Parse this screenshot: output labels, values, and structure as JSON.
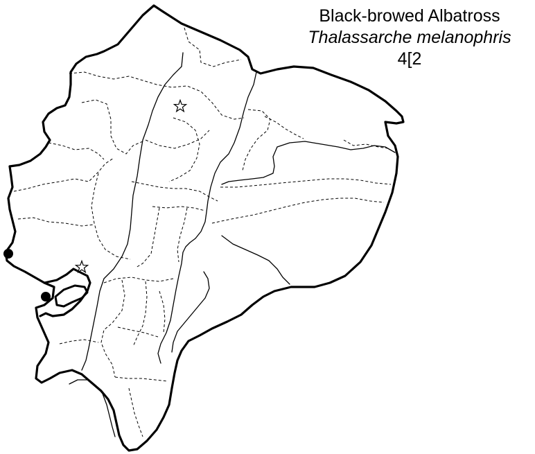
{
  "map": {
    "title": "Black-browed Albatross",
    "scientific_name": "Thalassarche melanophris",
    "code": "4[2",
    "record_types": [
      "dot",
      "star"
    ],
    "records": [
      {
        "type": "dot"
      },
      {
        "type": "dot"
      },
      {
        "type": "star"
      },
      {
        "type": "star"
      }
    ]
  }
}
